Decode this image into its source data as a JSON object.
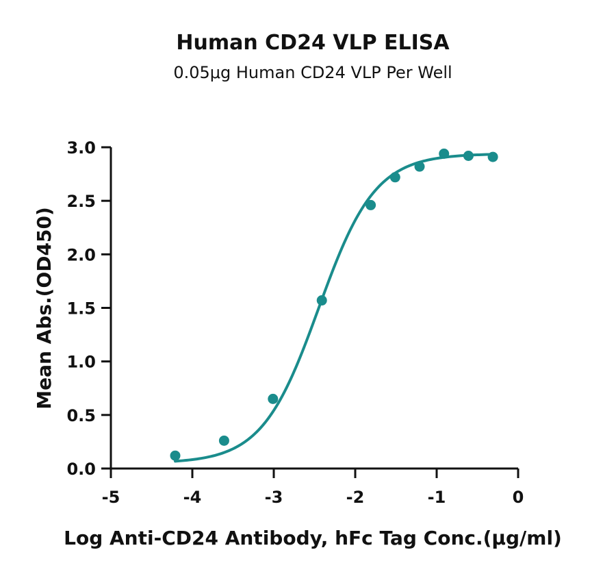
{
  "chart_data": {
    "type": "scatter",
    "title": "Human CD24 VLP ELISA",
    "subtitle": "0.05μg Human CD24 VLP Per Well",
    "xlabel": "Log Anti-CD24 Antibody, hFc Tag Conc.(μg/ml)",
    "ylabel": "Mean Abs.(OD450)",
    "xlim": [
      -5,
      0
    ],
    "ylim": [
      0,
      3.0
    ],
    "xticks": [
      "-5",
      "-4",
      "-3",
      "-2",
      "-1",
      "0"
    ],
    "yticks": [
      "0.0",
      "0.5",
      "1.0",
      "1.5",
      "2.0",
      "2.5",
      "3.0"
    ],
    "grid": false,
    "color": "#1a8c8c",
    "series": [
      {
        "x": [
          -4.21,
          -3.61,
          -3.01,
          -2.41,
          -1.81,
          -1.51,
          -1.21,
          -0.91,
          -0.61,
          -0.31
        ],
        "y": [
          0.12,
          0.26,
          0.65,
          1.57,
          2.46,
          2.72,
          2.82,
          2.94,
          2.92,
          2.91
        ]
      }
    ],
    "fit_curve": {
      "model": "4PL",
      "bottom": 0.05,
      "top": 2.94,
      "log_ec50": -2.45,
      "hill_slope": 1.25
    }
  }
}
